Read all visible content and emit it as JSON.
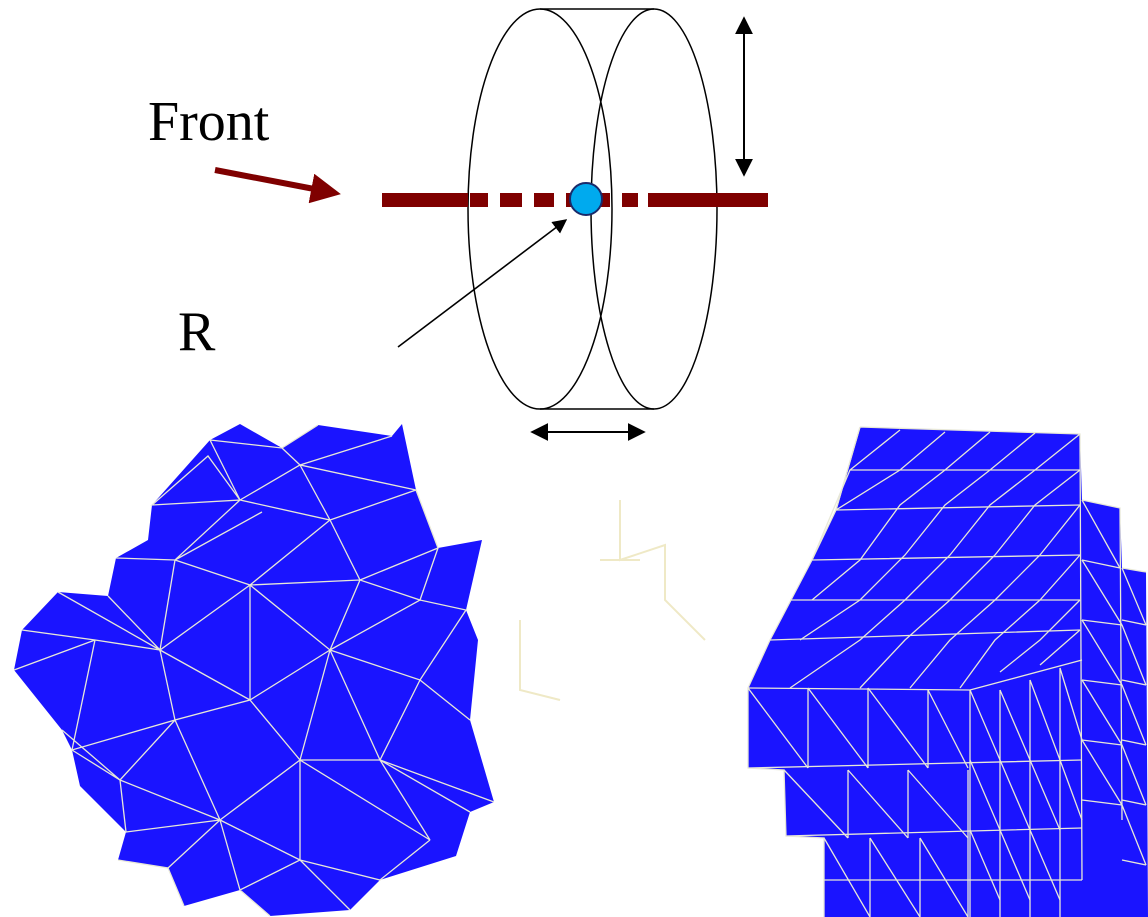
{
  "labels": {
    "front": "Front",
    "radius": "R"
  },
  "colors": {
    "axis": "#7f0000",
    "ball_fill": "#00aaee",
    "ball_stroke": "#1a2a6a",
    "mesh_fill": "#1a14ff",
    "mesh_edge": "#e8e8d8",
    "line": "#000000",
    "faint": "#efe9c6"
  },
  "icons": {
    "front_arrow": "arrow-right-icon",
    "radius_arrow": "arrow-up-right-icon",
    "height_arrow": "double-arrow-vertical-icon",
    "width_arrow": "double-arrow-horizontal-icon"
  }
}
